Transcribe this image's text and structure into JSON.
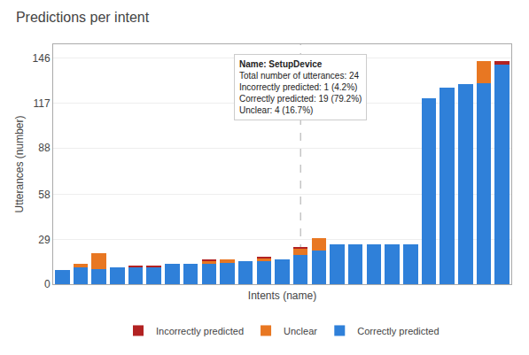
{
  "chart_data": {
    "type": "bar",
    "title": "Predictions per intent",
    "xlabel": "Intents (name)",
    "ylabel": "Utterances (number)",
    "categories": [
      null,
      null,
      null,
      null,
      null,
      null,
      null,
      null,
      null,
      null,
      null,
      null,
      null,
      null,
      null,
      null,
      null,
      null,
      null,
      null,
      null,
      null,
      null,
      null,
      null
    ],
    "series": [
      {
        "name": "Correctly predicted",
        "color": "#2f80d9",
        "values": [
          9,
          11,
          10,
          11,
          11,
          11,
          13,
          13,
          13,
          14,
          15,
          15,
          16,
          19,
          22,
          26,
          26,
          26,
          26,
          26,
          120,
          127,
          129,
          130,
          142
        ]
      },
      {
        "name": "Unclear",
        "color": "#e87722",
        "values": [
          0,
          2,
          10,
          0,
          0,
          0,
          0,
          0,
          2,
          2,
          0,
          2,
          0,
          4,
          8,
          0,
          0,
          0,
          0,
          0,
          0,
          0,
          0,
          14,
          0
        ]
      },
      {
        "name": "Incorrectly predicted",
        "color": "#b22222",
        "values": [
          0,
          0,
          0,
          0,
          1,
          1,
          0,
          0,
          1,
          0,
          0,
          1,
          0,
          1,
          0,
          0,
          0,
          0,
          0,
          0,
          0,
          0,
          0,
          0,
          2
        ]
      }
    ],
    "stacked": true,
    "ylim": [
      0,
      155
    ],
    "yticks": [
      0,
      29,
      58,
      88,
      117,
      146
    ],
    "grid": true,
    "legend": "bottom",
    "tick_labels": "y",
    "annotations": [
      {
        "x": 13,
        "text": [
          "Name: SetupDevice",
          "Total number of utterances: 24",
          "Incorrectly predicted: 1 (4.2%)",
          "Correctly predicted: 19 (79.2%)",
          "Unclear: 4 (16.7%)"
        ]
      }
    ]
  }
}
